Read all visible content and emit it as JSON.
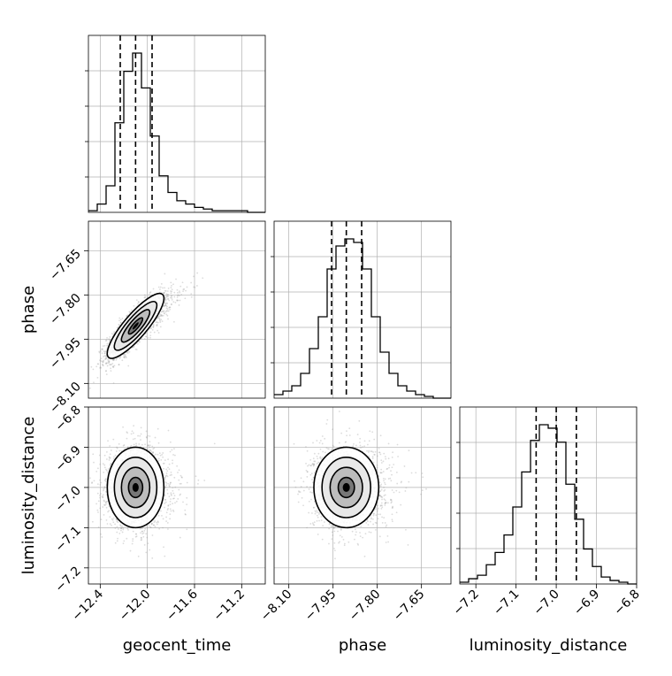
{
  "chart_data": {
    "type": "scatter",
    "title": "",
    "style": {
      "histogram_color": "#000000",
      "scatter_color": "#9a9a9a",
      "grid_color": "#b0b0b0"
    },
    "parameters": [
      {
        "name": "geocent_time",
        "label": "geocent_time",
        "range": [
          -12.5,
          -11.0
        ],
        "ticks": [
          "−12.4",
          "−12.0",
          "−11.6",
          "−11.2"
        ],
        "tick_values": [
          -12.4,
          -12.0,
          -11.6,
          -11.2
        ],
        "quantiles": [
          -12.23,
          -12.1,
          -11.96
        ]
      },
      {
        "name": "phase",
        "label": "phase",
        "range": [
          -8.15,
          -7.55
        ],
        "ticks": [
          "−8.10",
          "−7.95",
          "−7.80",
          "−7.65"
        ],
        "tick_values": [
          -8.1,
          -7.95,
          -7.8,
          -7.65
        ],
        "quantiles": [
          -7.955,
          -7.905,
          -7.853
        ]
      },
      {
        "name": "luminosity_distance",
        "label": "luminosity_distance",
        "range": [
          -7.24,
          -6.8
        ],
        "ticks": [
          "−7.2",
          "−7.1",
          "−7.0",
          "−6.9",
          "−6.8"
        ],
        "tick_values": [
          -7.2,
          -7.1,
          -7.0,
          -6.9,
          -6.8
        ],
        "quantiles": [
          -7.05,
          -7.0,
          -6.95
        ]
      }
    ],
    "histograms": [
      {
        "parameter": "geocent_time",
        "bin_edges_range": [
          -12.5,
          -11.0
        ],
        "bins": 20,
        "counts": [
          0.01,
          0.05,
          0.16,
          0.54,
          0.85,
          0.96,
          0.75,
          0.46,
          0.22,
          0.12,
          0.07,
          0.05,
          0.03,
          0.02,
          0.01,
          0.01,
          0.01,
          0.01,
          0.0,
          0.0
        ]
      },
      {
        "parameter": "phase",
        "bin_edges_range": [
          -8.15,
          -7.55
        ],
        "bins": 20,
        "counts": [
          0.02,
          0.04,
          0.07,
          0.14,
          0.28,
          0.46,
          0.73,
          0.86,
          0.9,
          0.88,
          0.73,
          0.46,
          0.26,
          0.14,
          0.07,
          0.04,
          0.02,
          0.01,
          0.0,
          0.0
        ]
      },
      {
        "parameter": "luminosity_distance",
        "bin_edges_range": [
          -7.24,
          -6.8
        ],
        "bins": 20,
        "counts": [
          0.01,
          0.03,
          0.05,
          0.11,
          0.18,
          0.28,
          0.44,
          0.64,
          0.82,
          0.91,
          0.89,
          0.81,
          0.57,
          0.37,
          0.2,
          0.1,
          0.04,
          0.02,
          0.01,
          0.0
        ]
      }
    ],
    "pair_panels": [
      {
        "x": "geocent_time",
        "y": "phase",
        "mean": [
          -12.1,
          -7.905
        ],
        "std": [
          0.12,
          0.055
        ],
        "corr": 0.85,
        "x_axis_shown": false,
        "y_axis_shown": true
      },
      {
        "x": "geocent_time",
        "y": "luminosity_distance",
        "mean": [
          -12.1,
          -7.0
        ],
        "std": [
          0.12,
          0.05
        ],
        "corr": 0.0,
        "x_axis_shown": true,
        "y_axis_shown": true
      },
      {
        "x": "phase",
        "y": "luminosity_distance",
        "mean": [
          -7.905,
          -7.0
        ],
        "std": [
          0.055,
          0.05
        ],
        "corr": 0.0,
        "x_axis_shown": true,
        "y_axis_shown": false
      }
    ],
    "contour_levels": [
      "0.5-sigma",
      "1-sigma",
      "1.5-sigma",
      "2-sigma"
    ],
    "grid": true,
    "legend": null
  }
}
